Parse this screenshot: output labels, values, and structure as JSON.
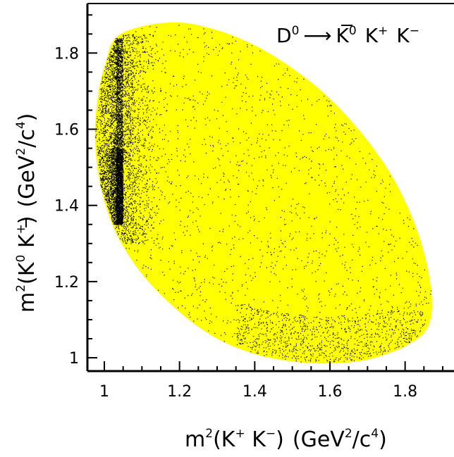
{
  "chart_data": {
    "type": "scatter",
    "title_parts": {
      "parent": "D",
      "parent_sup": "0",
      "arrow": "⟶",
      "k0": "K",
      "k0_sup": "0",
      "kplus": "K",
      "kplus_sup": "+",
      "kminus": "K",
      "kminus_sup": "−"
    },
    "xlabel_parts": {
      "m": "m",
      "m_sup": "2",
      "open": "(K",
      "kplus_sup": "+",
      "mid": " K",
      "kminus_sup": "−",
      "close": ")",
      "unit_open": "(GeV",
      "gev_sup": "2",
      "unit_mid": "/c",
      "c_sup": "4",
      "unit_close": ")"
    },
    "ylabel_parts": {
      "m": "m",
      "m_sup": "2",
      "open": "(K",
      "k0_sup": "0",
      "mid": " K",
      "kplus_sup": "+",
      "close": ")",
      "unit_open": "(GeV",
      "gev_sup": "2",
      "unit_mid": "/c",
      "c_sup": "4",
      "unit_close": ")"
    },
    "xlim": [
      0.955,
      1.93
    ],
    "ylim": [
      0.965,
      1.93
    ],
    "xticks": [
      1.0,
      1.2,
      1.4,
      1.6,
      1.8
    ],
    "xtick_labels": [
      "1",
      "1.2",
      "1.4",
      "1.6",
      "1.8"
    ],
    "yticks": [
      1.0,
      1.2,
      1.4,
      1.6,
      1.8
    ],
    "ytick_labels": [
      "1",
      "1.2",
      "1.4",
      "1.6",
      "1.8"
    ],
    "grid": false,
    "kinematic_region": {
      "color": "#ffff00",
      "boundary": [
        [
          1.03,
          1.84
        ],
        [
          1.1,
          1.87
        ],
        [
          1.2,
          1.88
        ],
        [
          1.3,
          1.86
        ],
        [
          1.4,
          1.82
        ],
        [
          1.5,
          1.76
        ],
        [
          1.6,
          1.68
        ],
        [
          1.7,
          1.57
        ],
        [
          1.78,
          1.45
        ],
        [
          1.84,
          1.31
        ],
        [
          1.87,
          1.17
        ],
        [
          1.86,
          1.08
        ],
        [
          1.8,
          1.03
        ],
        [
          1.7,
          0.995
        ],
        [
          1.6,
          0.985
        ],
        [
          1.5,
          0.99
        ],
        [
          1.4,
          1.01
        ],
        [
          1.3,
          1.05
        ],
        [
          1.2,
          1.12
        ],
        [
          1.1,
          1.22
        ],
        [
          1.03,
          1.33
        ],
        [
          0.99,
          1.45
        ],
        [
          0.975,
          1.58
        ],
        [
          0.985,
          1.7
        ],
        [
          1.005,
          1.78
        ]
      ]
    },
    "event_points": {
      "color": "#000000",
      "bands": [
        {
          "m2_kk": 1.04,
          "m2_k0k_min": 1.35,
          "m2_k0k_max": 1.84
        },
        {
          "m2_kk": 1.04,
          "m2_k0k_min": 1.35,
          "m2_k0k_max": 1.55
        }
      ]
    }
  }
}
